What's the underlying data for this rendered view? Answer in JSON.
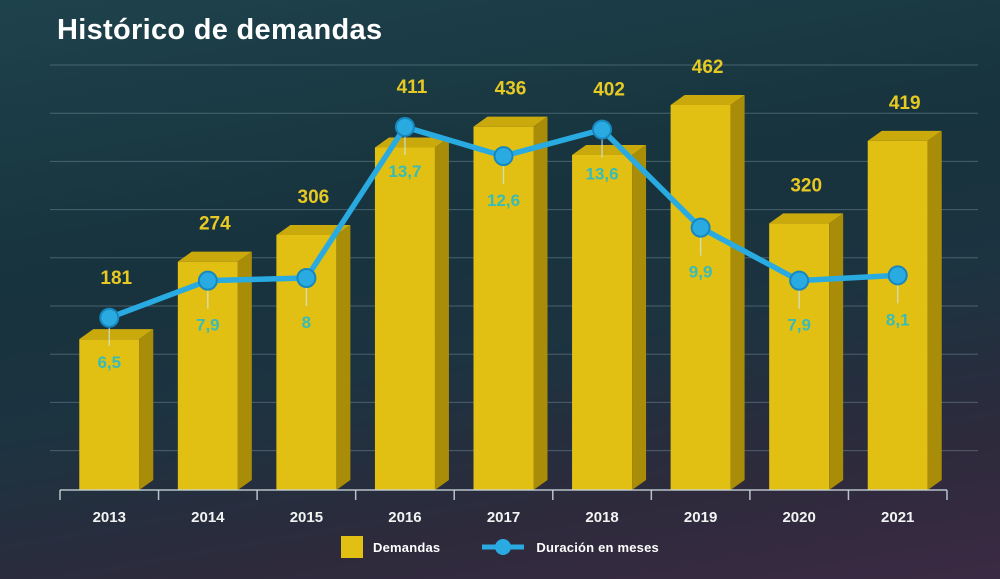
{
  "title": "Histórico de demandas",
  "legend": {
    "bars_label": "Demandas",
    "line_label": "Duración en meses"
  },
  "colors": {
    "bar_front": "#E2C013",
    "bar_top": "#C9A90C",
    "bar_side": "#A98C07",
    "line": "#29ABE2",
    "line_marker_ring": "#1787BE",
    "bar_label": "#E7C924",
    "line_label": "#38BCB8",
    "year_label": "#F2F4F4",
    "axis": "#C7D3D8",
    "grid": "#7E99A4",
    "leader": "#CFE9F5"
  },
  "chart_data": {
    "type": "bar",
    "subtype": "bar+line combo, 3d bars",
    "title": "Histórico de demandas",
    "categories": [
      "2013",
      "2014",
      "2015",
      "2016",
      "2017",
      "2018",
      "2019",
      "2020",
      "2021"
    ],
    "series": [
      {
        "name": "Demandas",
        "type": "bar",
        "values": [
          181,
          274,
          306,
          411,
          436,
          402,
          462,
          320,
          419
        ],
        "labels": [
          "181",
          "274",
          "306",
          "411",
          "436",
          "402",
          "462",
          "320",
          "419"
        ]
      },
      {
        "name": "Duración en meses",
        "type": "line",
        "values": [
          6.5,
          7.9,
          8,
          13.7,
          12.6,
          13.6,
          9.9,
          7.9,
          8.1
        ],
        "labels": [
          "6,5",
          "7,9",
          "8",
          "13,7",
          "12,6",
          "13,6",
          "9,9",
          "7,9",
          "8,1"
        ]
      }
    ],
    "xlabel": "",
    "ylabel": "",
    "bar_ylim": [
      0,
      510
    ],
    "line_ylim": [
      0,
      16
    ],
    "grid": true,
    "legend_position": "bottom"
  }
}
